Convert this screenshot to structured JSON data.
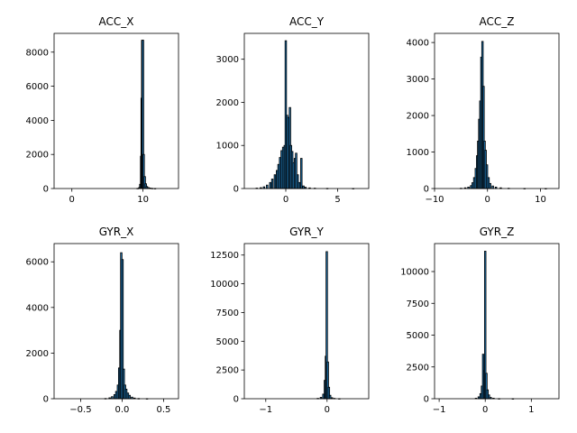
{
  "chart_data": [
    {
      "type": "bar",
      "title": "ACC_X",
      "xlim": [
        -2.5,
        15.0
      ],
      "ylim": [
        0,
        9100
      ],
      "xticks": [
        0,
        10
      ],
      "yticks": [
        0,
        2000,
        4000,
        6000,
        8000
      ],
      "xticklabels": [
        "0",
        "10"
      ],
      "yticklabels": [
        "0",
        "2000",
        "4000",
        "6000",
        "8000"
      ],
      "bins": {
        "start": -2.0,
        "width": 0.25
      },
      "counts": [
        [
          0.0,
          0
        ],
        [
          9.25,
          10
        ],
        [
          9.5,
          60
        ],
        [
          9.625,
          250
        ],
        [
          9.75,
          1900
        ],
        [
          9.825,
          5300
        ],
        [
          9.9,
          8700
        ],
        [
          10.0,
          8700
        ],
        [
          10.1,
          2000
        ],
        [
          10.25,
          700
        ],
        [
          10.4,
          280
        ],
        [
          10.55,
          120
        ],
        [
          10.75,
          60
        ],
        [
          11.0,
          30
        ],
        [
          11.3,
          12
        ],
        [
          11.7,
          6
        ]
      ]
    },
    {
      "type": "bar",
      "title": "ACC_Y",
      "xlim": [
        -4.0,
        8.0
      ],
      "ylim": [
        0,
        3600
      ],
      "xticks": [
        0,
        5
      ],
      "yticks": [
        0,
        1000,
        2000,
        3000
      ],
      "xticklabels": [
        "0",
        "5"
      ],
      "yticklabels": [
        "0",
        "1000",
        "2000",
        "3000"
      ],
      "counts": [
        [
          -2.8,
          10
        ],
        [
          -2.4,
          20
        ],
        [
          -2.1,
          40
        ],
        [
          -1.8,
          80
        ],
        [
          -1.5,
          140
        ],
        [
          -1.3,
          220
        ],
        [
          -1.05,
          320
        ],
        [
          -0.85,
          420
        ],
        [
          -0.7,
          560
        ],
        [
          -0.55,
          720
        ],
        [
          -0.4,
          880
        ],
        [
          -0.25,
          960
        ],
        [
          -0.1,
          1000
        ],
        [
          0.0,
          3430
        ],
        [
          0.12,
          1700
        ],
        [
          0.25,
          1650
        ],
        [
          0.4,
          1880
        ],
        [
          0.5,
          1000
        ],
        [
          0.62,
          860
        ],
        [
          0.75,
          600
        ],
        [
          0.88,
          700
        ],
        [
          1.0,
          820
        ],
        [
          1.15,
          320
        ],
        [
          1.3,
          140
        ],
        [
          1.5,
          700
        ],
        [
          1.7,
          60
        ],
        [
          1.9,
          30
        ],
        [
          2.3,
          15
        ],
        [
          2.8,
          8
        ],
        [
          4.0,
          4
        ],
        [
          6.5,
          2
        ]
      ]
    },
    {
      "type": "bar",
      "title": "ACC_Z",
      "xlim": [
        -10.0,
        13.5
      ],
      "ylim": [
        0,
        4250
      ],
      "xticks": [
        -10,
        0,
        10
      ],
      "yticks": [
        0,
        1000,
        2000,
        3000,
        4000
      ],
      "xticklabels": [
        "−10",
        "0",
        "10"
      ],
      "yticklabels": [
        "0",
        "1000",
        "2000",
        "3000",
        "4000"
      ],
      "counts": [
        [
          -5.0,
          8
        ],
        [
          -4.2,
          20
        ],
        [
          -3.6,
          40
        ],
        [
          -3.1,
          80
        ],
        [
          -2.8,
          160
        ],
        [
          -2.5,
          300
        ],
        [
          -2.2,
          550
        ],
        [
          -1.95,
          900
        ],
        [
          -1.75,
          1300
        ],
        [
          -1.55,
          1900
        ],
        [
          -1.35,
          2400
        ],
        [
          -1.15,
          3600
        ],
        [
          -0.95,
          4030
        ],
        [
          -0.75,
          2800
        ],
        [
          -0.55,
          1300
        ],
        [
          -0.35,
          1050
        ],
        [
          -0.1,
          650
        ],
        [
          0.2,
          300
        ],
        [
          0.5,
          140
        ],
        [
          1.0,
          70
        ],
        [
          1.6,
          40
        ],
        [
          2.5,
          20
        ],
        [
          4.0,
          8
        ],
        [
          7.0,
          3
        ],
        [
          11.0,
          1
        ]
      ]
    },
    {
      "type": "bar",
      "title": "GYR_X",
      "xlim": [
        -0.82,
        0.68
      ],
      "ylim": [
        0,
        6800
      ],
      "xticks": [
        -0.5,
        0.0,
        0.5
      ],
      "yticks": [
        0,
        2000,
        4000,
        6000
      ],
      "xticklabels": [
        "−0.5",
        "0.0",
        "0.5"
      ],
      "yticklabels": [
        "0",
        "2000",
        "4000",
        "6000"
      ],
      "counts": [
        [
          -0.2,
          10
        ],
        [
          -0.15,
          40
        ],
        [
          -0.12,
          90
        ],
        [
          -0.09,
          180
        ],
        [
          -0.07,
          320
        ],
        [
          -0.05,
          600
        ],
        [
          -0.035,
          1350
        ],
        [
          -0.02,
          3000
        ],
        [
          -0.01,
          6400
        ],
        [
          0.005,
          6100
        ],
        [
          0.02,
          1300
        ],
        [
          0.035,
          600
        ],
        [
          0.05,
          420
        ],
        [
          0.07,
          250
        ],
        [
          0.09,
          150
        ],
        [
          0.12,
          70
        ],
        [
          0.15,
          30
        ],
        [
          0.2,
          10
        ],
        [
          0.3,
          3
        ]
      ]
    },
    {
      "type": "bar",
      "title": "GYR_Y",
      "xlim": [
        -1.35,
        0.68
      ],
      "ylim": [
        0,
        13500
      ],
      "xticks": [
        -1,
        0
      ],
      "yticks": [
        0,
        2500,
        5000,
        7500,
        10000,
        12500
      ],
      "xticklabels": [
        "−1",
        "0"
      ],
      "yticklabels": [
        "0",
        "2500",
        "5000",
        "7500",
        "10000",
        "12500"
      ],
      "counts": [
        [
          -0.15,
          30
        ],
        [
          -0.1,
          120
        ],
        [
          -0.06,
          400
        ],
        [
          -0.035,
          1600
        ],
        [
          -0.018,
          3700
        ],
        [
          -0.005,
          12800
        ],
        [
          0.012,
          3200
        ],
        [
          0.03,
          1000
        ],
        [
          0.05,
          300
        ],
        [
          0.08,
          90
        ],
        [
          0.12,
          30
        ],
        [
          0.2,
          8
        ]
      ]
    },
    {
      "type": "bar",
      "title": "GYR_Z",
      "xlim": [
        -1.1,
        1.6
      ],
      "ylim": [
        0,
        12200
      ],
      "xticks": [
        -1,
        0,
        1
      ],
      "yticks": [
        0,
        2500,
        5000,
        7500,
        10000
      ],
      "xticklabels": [
        "−1",
        "0",
        "1"
      ],
      "yticklabels": [
        "0",
        "2500",
        "5000",
        "7500",
        "10000"
      ],
      "counts": [
        [
          -0.2,
          40
        ],
        [
          -0.14,
          150
        ],
        [
          -0.1,
          400
        ],
        [
          -0.07,
          1000
        ],
        [
          -0.045,
          3500
        ],
        [
          -0.02,
          2200
        ],
        [
          0.0,
          11600
        ],
        [
          0.025,
          2000
        ],
        [
          0.05,
          700
        ],
        [
          0.08,
          300
        ],
        [
          0.12,
          100
        ],
        [
          0.18,
          40
        ],
        [
          0.3,
          10
        ],
        [
          0.6,
          3
        ]
      ]
    }
  ]
}
